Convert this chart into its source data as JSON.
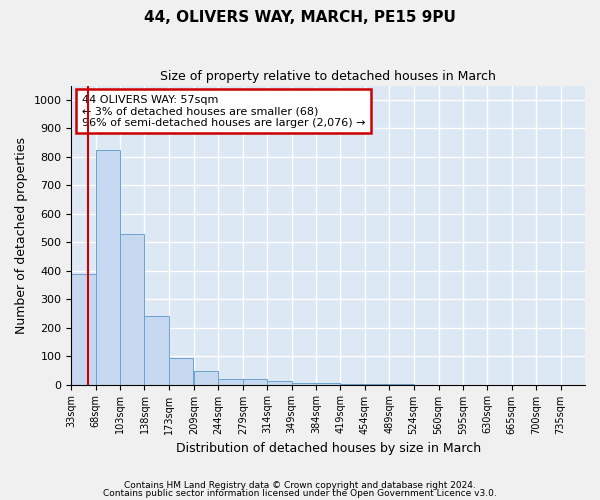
{
  "title1": "44, OLIVERS WAY, MARCH, PE15 9PU",
  "title2": "Size of property relative to detached houses in March",
  "xlabel": "Distribution of detached houses by size in March",
  "ylabel": "Number of detached properties",
  "bar_edges": [
    33,
    68,
    103,
    138,
    173,
    209,
    244,
    279,
    314,
    349,
    384,
    419,
    454,
    489,
    524,
    560,
    595,
    630,
    665,
    700,
    735
  ],
  "bar_heights": [
    390,
    825,
    530,
    240,
    95,
    48,
    18,
    18,
    12,
    5,
    5,
    2,
    1,
    1,
    0,
    0,
    0,
    0,
    0,
    0
  ],
  "bar_color": "#c5d8ef",
  "bar_edge_color": "#6aa3cc",
  "vline_x": 57,
  "vline_color": "#cc0000",
  "annotation_line1": "44 OLIVERS WAY: 57sqm",
  "annotation_line2": "← 3% of detached houses are smaller (68)",
  "annotation_line3": "96% of semi-detached houses are larger (2,076) →",
  "annotation_box_color": "#cc0000",
  "ylim": [
    0,
    1050
  ],
  "yticks": [
    0,
    100,
    200,
    300,
    400,
    500,
    600,
    700,
    800,
    900,
    1000
  ],
  "background_color": "#dde8f5",
  "grid_color": "#ffffff",
  "fig_facecolor": "#f0f0f0",
  "footer1": "Contains HM Land Registry data © Crown copyright and database right 2024.",
  "footer2": "Contains public sector information licensed under the Open Government Licence v3.0."
}
